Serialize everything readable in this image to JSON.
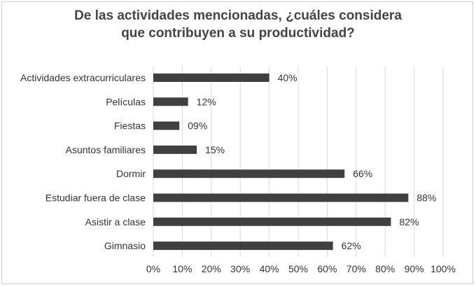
{
  "chart_data": {
    "type": "bar",
    "orientation": "horizontal",
    "title_lines": [
      "De las actividades mencionadas, ¿cuáles considera",
      "que contribuyen a su productividad?"
    ],
    "categories": [
      "Actividades extracurriculares",
      "Películas",
      "Fiestas",
      "Asuntos familiares",
      "Dormir",
      "Estudiar fuera de clase",
      "Asistir a clase",
      "Gimnasio"
    ],
    "values": [
      40,
      12,
      9,
      15,
      66,
      88,
      82,
      62
    ],
    "data_labels": [
      "40%",
      "12%",
      "09%",
      "15%",
      "66%",
      "88%",
      "82%",
      "62%"
    ],
    "x_ticks": [
      "0%",
      "10%",
      "20%",
      "30%",
      "40%",
      "50%",
      "60%",
      "70%",
      "80%",
      "90%",
      "100%"
    ],
    "xlim": [
      0,
      100
    ],
    "grid": true,
    "bar_color": "#404040",
    "grid_color": "#d9d9d9"
  }
}
